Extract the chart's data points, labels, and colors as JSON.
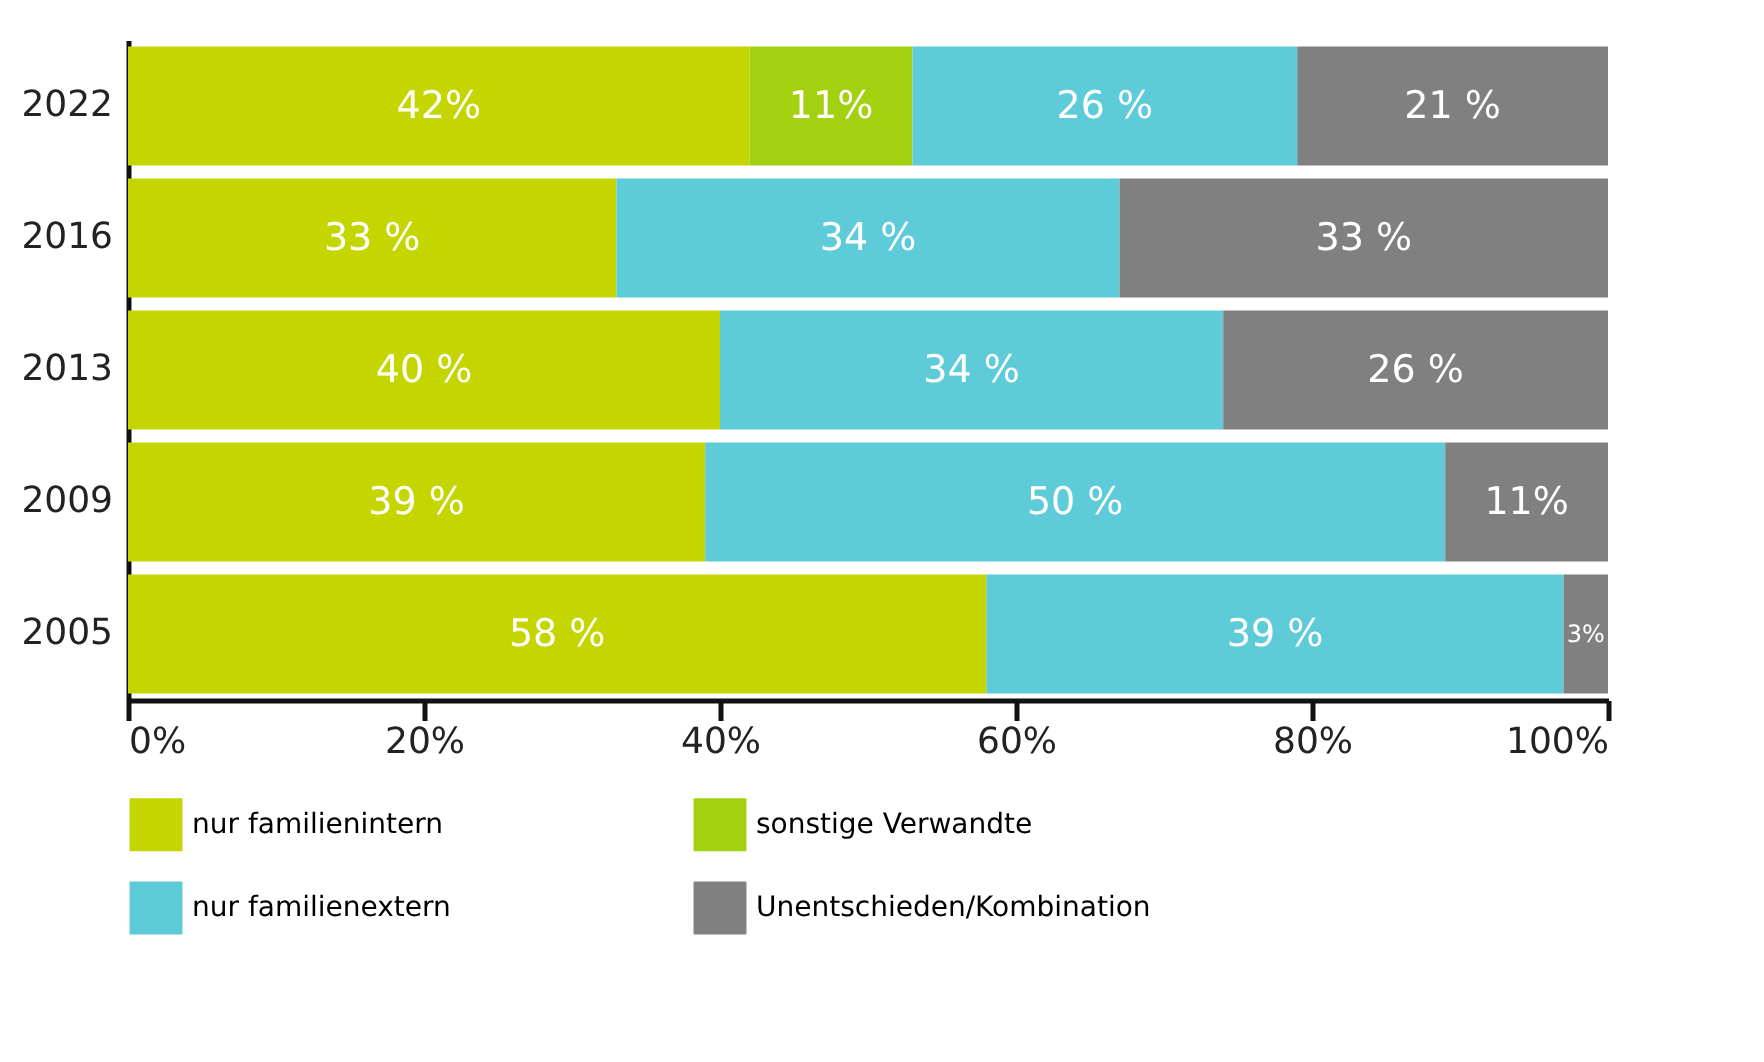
{
  "chart_data": {
    "type": "bar",
    "orientation": "horizontal",
    "stacked": true,
    "categories": [
      "2022",
      "2016",
      "2013",
      "2009",
      "2005"
    ],
    "series": [
      {
        "name": "nur familienintern",
        "color": "#c5d500",
        "values": [
          42,
          33,
          40,
          39,
          58
        ],
        "value_labels": [
          "42%",
          "33 %",
          "40 %",
          "39 %",
          "58 %"
        ]
      },
      {
        "name": "sonstige Verwandte",
        "color": "#a3d10f",
        "values": [
          11,
          null,
          null,
          null,
          null
        ],
        "value_labels": [
          "11%",
          null,
          null,
          null,
          null
        ]
      },
      {
        "name": "nur familienextern",
        "color": "#5ecbd8",
        "values": [
          26,
          34,
          34,
          50,
          39
        ],
        "value_labels": [
          "26 %",
          "34 %",
          "34 %",
          "50 %",
          "39 %"
        ]
      },
      {
        "name": "Unentschieden/Kombination",
        "color": "#808080",
        "values": [
          21,
          33,
          26,
          11,
          3
        ],
        "value_labels": [
          "21 %",
          "33 %",
          "26 %",
          "11%",
          "3%"
        ]
      }
    ],
    "xlim": [
      0,
      100
    ],
    "xticks": [
      {
        "value": 0,
        "label": "0%"
      },
      {
        "value": 20,
        "label": "20%"
      },
      {
        "value": 40,
        "label": "40%"
      },
      {
        "value": 60,
        "label": "60%"
      },
      {
        "value": 80,
        "label": "80%"
      },
      {
        "value": 100,
        "label": "100%"
      }
    ],
    "grid": false,
    "legend": "bottom"
  }
}
